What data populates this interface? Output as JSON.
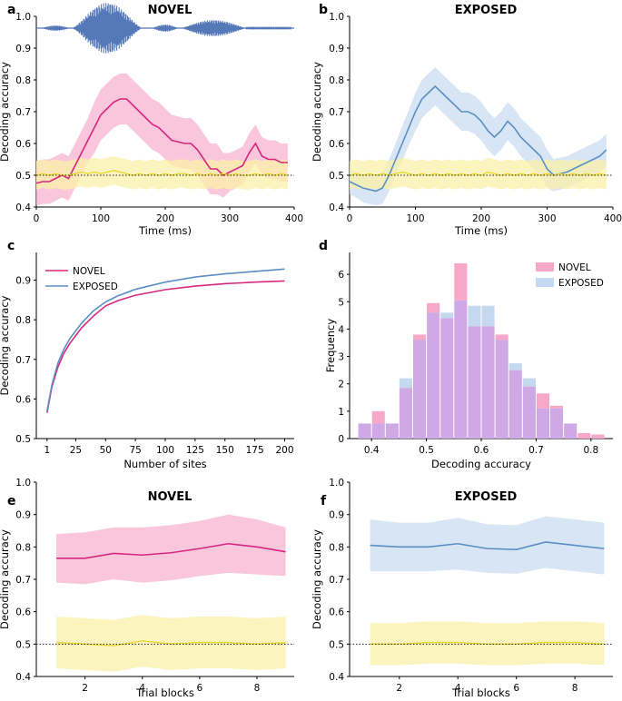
{
  "colors": {
    "novel": "#d6287f",
    "novel_band": "#f7b3d0",
    "exposed": "#5b8fc4",
    "exposed_band": "#c9dcf0",
    "chance": "#e8d62a",
    "chance_band": "#fbf0a8",
    "waveform": "#5578b8",
    "hist_novel": "#f7a8c8",
    "hist_exposed": "#c4d8f0",
    "hist_overlap": "#cfa8e6"
  },
  "chart_data": [
    {
      "id": "a",
      "type": "line",
      "panel_label": "a",
      "title": "NOVEL",
      "xlabel": "Time (ms)",
      "ylabel": "Decoding accuracy",
      "xlim": [
        0,
        400
      ],
      "ylim": [
        0.4,
        1.0
      ],
      "xticks": [
        "0",
        "100",
        "200",
        "300",
        "400"
      ],
      "yticks": [
        "0.4",
        "0.5",
        "0.6",
        "0.7",
        "0.8",
        "0.9",
        "1.0"
      ],
      "x": [
        0,
        10,
        20,
        30,
        40,
        50,
        60,
        70,
        80,
        90,
        100,
        110,
        120,
        130,
        140,
        150,
        160,
        170,
        180,
        190,
        200,
        210,
        220,
        230,
        240,
        250,
        260,
        270,
        280,
        290,
        300,
        310,
        320,
        330,
        340,
        350,
        360,
        370,
        380,
        390
      ],
      "series": [
        {
          "name": "NOVEL",
          "color_key": "novel",
          "values": [
            0.475,
            0.48,
            0.48,
            0.49,
            0.5,
            0.49,
            0.53,
            0.57,
            0.61,
            0.65,
            0.69,
            0.71,
            0.73,
            0.74,
            0.74,
            0.72,
            0.7,
            0.68,
            0.66,
            0.65,
            0.63,
            0.61,
            0.605,
            0.6,
            0.6,
            0.58,
            0.55,
            0.52,
            0.52,
            0.5,
            0.51,
            0.52,
            0.53,
            0.57,
            0.6,
            0.56,
            0.55,
            0.55,
            0.54,
            0.54
          ],
          "band": [
            0.07,
            0.07,
            0.07,
            0.07,
            0.07,
            0.07,
            0.07,
            0.07,
            0.07,
            0.08,
            0.08,
            0.08,
            0.08,
            0.08,
            0.08,
            0.08,
            0.08,
            0.08,
            0.08,
            0.08,
            0.08,
            0.08,
            0.08,
            0.08,
            0.08,
            0.08,
            0.08,
            0.08,
            0.08,
            0.07,
            0.06,
            0.06,
            0.06,
            0.06,
            0.06,
            0.06,
            0.06,
            0.06,
            0.06,
            0.06
          ]
        },
        {
          "name": "Chance",
          "color_key": "chance",
          "values": [
            0.5,
            0.505,
            0.5,
            0.505,
            0.5,
            0.5,
            0.505,
            0.51,
            0.505,
            0.51,
            0.505,
            0.51,
            0.515,
            0.51,
            0.505,
            0.5,
            0.505,
            0.5,
            0.505,
            0.5,
            0.505,
            0.5,
            0.505,
            0.505,
            0.5,
            0.505,
            0.5,
            0.505,
            0.5,
            0.505,
            0.5,
            0.505,
            0.5,
            0.5,
            0.505,
            0.5,
            0.505,
            0.5,
            0.505,
            0.5
          ],
          "band": [
            0.045,
            0.045,
            0.045,
            0.045,
            0.045,
            0.045,
            0.045,
            0.045,
            0.045,
            0.045,
            0.045,
            0.045,
            0.045,
            0.045,
            0.045,
            0.045,
            0.045,
            0.045,
            0.045,
            0.045,
            0.045,
            0.045,
            0.045,
            0.045,
            0.045,
            0.045,
            0.045,
            0.045,
            0.045,
            0.045,
            0.045,
            0.045,
            0.045,
            0.045,
            0.045,
            0.045,
            0.045,
            0.045,
            0.045,
            0.045
          ]
        }
      ],
      "chance_line": 0.5,
      "waveform": true
    },
    {
      "id": "b",
      "type": "line",
      "panel_label": "b",
      "title": "EXPOSED",
      "xlabel": "Time (ms)",
      "ylabel": "Decoding accuracy",
      "xlim": [
        0,
        400
      ],
      "ylim": [
        0.4,
        1.0
      ],
      "xticks": [
        "0",
        "100",
        "200",
        "300",
        "400"
      ],
      "yticks": [
        "0.4",
        "0.5",
        "0.6",
        "0.7",
        "0.8",
        "0.9",
        "1.0"
      ],
      "x": [
        0,
        10,
        20,
        30,
        40,
        50,
        60,
        70,
        80,
        90,
        100,
        110,
        120,
        130,
        140,
        150,
        160,
        170,
        180,
        190,
        200,
        210,
        220,
        230,
        240,
        250,
        260,
        270,
        280,
        290,
        300,
        310,
        320,
        330,
        340,
        350,
        360,
        370,
        380,
        390
      ],
      "series": [
        {
          "name": "EXPOSED",
          "color_key": "exposed",
          "values": [
            0.48,
            0.47,
            0.46,
            0.455,
            0.45,
            0.46,
            0.5,
            0.55,
            0.6,
            0.65,
            0.7,
            0.74,
            0.76,
            0.78,
            0.76,
            0.74,
            0.72,
            0.7,
            0.7,
            0.69,
            0.67,
            0.64,
            0.62,
            0.64,
            0.67,
            0.65,
            0.62,
            0.6,
            0.58,
            0.56,
            0.52,
            0.5,
            0.505,
            0.51,
            0.52,
            0.53,
            0.54,
            0.55,
            0.56,
            0.58
          ],
          "band": [
            0.04,
            0.04,
            0.045,
            0.045,
            0.045,
            0.05,
            0.05,
            0.05,
            0.055,
            0.055,
            0.06,
            0.06,
            0.06,
            0.06,
            0.06,
            0.06,
            0.06,
            0.06,
            0.06,
            0.06,
            0.06,
            0.06,
            0.06,
            0.06,
            0.06,
            0.06,
            0.06,
            0.06,
            0.06,
            0.06,
            0.06,
            0.05,
            0.05,
            0.05,
            0.05,
            0.05,
            0.05,
            0.05,
            0.05,
            0.05
          ]
        },
        {
          "name": "Chance",
          "color_key": "chance",
          "values": [
            0.5,
            0.505,
            0.5,
            0.505,
            0.5,
            0.505,
            0.5,
            0.505,
            0.51,
            0.505,
            0.5,
            0.505,
            0.5,
            0.505,
            0.5,
            0.505,
            0.5,
            0.505,
            0.5,
            0.505,
            0.5,
            0.51,
            0.505,
            0.5,
            0.505,
            0.5,
            0.505,
            0.5,
            0.505,
            0.5,
            0.505,
            0.5,
            0.505,
            0.5,
            0.505,
            0.5,
            0.505,
            0.5,
            0.505,
            0.5
          ],
          "band": [
            0.045,
            0.045,
            0.045,
            0.045,
            0.045,
            0.045,
            0.045,
            0.045,
            0.045,
            0.045,
            0.045,
            0.045,
            0.045,
            0.045,
            0.045,
            0.045,
            0.045,
            0.045,
            0.045,
            0.045,
            0.045,
            0.045,
            0.045,
            0.045,
            0.045,
            0.045,
            0.045,
            0.045,
            0.045,
            0.045,
            0.045,
            0.045,
            0.045,
            0.045,
            0.045,
            0.045,
            0.045,
            0.045,
            0.045,
            0.045
          ]
        }
      ],
      "chance_line": 0.5
    },
    {
      "id": "c",
      "type": "line",
      "panel_label": "c",
      "title": "",
      "xlabel": "Number of sites",
      "ylabel": "Decoding accuracy",
      "xlim": [
        -8,
        208
      ],
      "ylim": [
        0.5,
        0.97
      ],
      "xticks": [
        "1",
        "25",
        "50",
        "75",
        "100",
        "125",
        "150",
        "175",
        "200"
      ],
      "xtick_values": [
        1,
        25,
        50,
        75,
        100,
        125,
        150,
        175,
        200
      ],
      "yticks": [
        "0.5",
        "0.6",
        "0.7",
        "0.8",
        "0.9"
      ],
      "ytick_values": [
        0.5,
        0.6,
        0.7,
        0.8,
        0.9
      ],
      "x": [
        1,
        5,
        10,
        15,
        20,
        25,
        30,
        40,
        50,
        60,
        75,
        100,
        125,
        150,
        175,
        200
      ],
      "series": [
        {
          "name": "NOVEL",
          "color_key": "novel",
          "values": [
            0.565,
            0.63,
            0.68,
            0.715,
            0.74,
            0.76,
            0.78,
            0.81,
            0.835,
            0.848,
            0.862,
            0.876,
            0.885,
            0.891,
            0.895,
            0.898
          ]
        },
        {
          "name": "EXPOSED",
          "color_key": "exposed",
          "values": [
            0.57,
            0.635,
            0.69,
            0.725,
            0.752,
            0.772,
            0.792,
            0.823,
            0.845,
            0.86,
            0.877,
            0.895,
            0.908,
            0.916,
            0.922,
            0.928
          ]
        }
      ],
      "legend": [
        "NOVEL",
        "EXPOSED"
      ],
      "legend_position": "top-left"
    },
    {
      "id": "d",
      "type": "bar",
      "panel_label": "d",
      "title": "",
      "xlabel": "Decoding accuracy",
      "ylabel": "Frequency",
      "xlim": [
        0.36,
        0.84
      ],
      "ylim": [
        0,
        6.8
      ],
      "xticks": [
        "0.4",
        "0.5",
        "0.6",
        "0.7",
        "0.8"
      ],
      "xtick_values": [
        0.4,
        0.5,
        0.6,
        0.7,
        0.8
      ],
      "yticks": [
        "0",
        "1",
        "2",
        "3",
        "4",
        "5",
        "6"
      ],
      "bin_edges": [
        0.375,
        0.4,
        0.425,
        0.45,
        0.475,
        0.5,
        0.525,
        0.55,
        0.575,
        0.6,
        0.625,
        0.65,
        0.675,
        0.7,
        0.725,
        0.75,
        0.775,
        0.8,
        0.825
      ],
      "series": [
        {
          "name": "NOVEL",
          "color_key": "hist_novel",
          "values": [
            0.55,
            1.0,
            0.55,
            1.85,
            3.8,
            4.95,
            4.4,
            6.4,
            4.1,
            4.1,
            3.8,
            2.5,
            1.9,
            1.65,
            1.2,
            0.55,
            0.2,
            0.15
          ]
        },
        {
          "name": "EXPOSED",
          "color_key": "hist_exposed",
          "values": [
            0.55,
            0.55,
            0.55,
            2.2,
            3.6,
            4.6,
            4.6,
            5.05,
            4.85,
            4.85,
            3.6,
            2.75,
            2.2,
            1.1,
            1.1,
            0.55,
            0,
            0
          ]
        }
      ],
      "legend": [
        "NOVEL",
        "EXPOSED"
      ],
      "legend_position": "top-right"
    },
    {
      "id": "e",
      "type": "line",
      "panel_label": "e",
      "title": "NOVEL",
      "xlabel": "Trial blocks",
      "ylabel": "Decoding accuracy",
      "xlim": [
        0.3,
        9.3
      ],
      "ylim": [
        0.4,
        1.0
      ],
      "xticks": [
        "2",
        "4",
        "6",
        "8"
      ],
      "xtick_values": [
        2,
        4,
        6,
        8
      ],
      "yticks": [
        "0.4",
        "0.5",
        "0.6",
        "0.7",
        "0.8",
        "0.9",
        "1.0"
      ],
      "x": [
        1,
        2,
        3,
        4,
        5,
        6,
        7,
        8,
        9
      ],
      "series": [
        {
          "name": "NOVEL",
          "color_key": "novel",
          "values": [
            0.765,
            0.765,
            0.78,
            0.775,
            0.782,
            0.795,
            0.81,
            0.8,
            0.785
          ],
          "band": [
            0.075,
            0.08,
            0.08,
            0.085,
            0.085,
            0.085,
            0.09,
            0.085,
            0.075
          ]
        },
        {
          "name": "Chance",
          "color_key": "chance",
          "values": [
            0.505,
            0.5,
            0.495,
            0.51,
            0.5,
            0.505,
            0.505,
            0.5,
            0.505
          ],
          "band": [
            0.08,
            0.08,
            0.08,
            0.08,
            0.08,
            0.08,
            0.08,
            0.08,
            0.08
          ]
        }
      ],
      "chance_line": 0.5
    },
    {
      "id": "f",
      "type": "line",
      "panel_label": "f",
      "title": "EXPOSED",
      "xlabel": "Trial blocks",
      "ylabel": "Decoding accuracy",
      "xlim": [
        0.3,
        9.3
      ],
      "ylim": [
        0.4,
        1.0
      ],
      "xticks": [
        "2",
        "4",
        "6",
        "8"
      ],
      "xtick_values": [
        2,
        4,
        6,
        8
      ],
      "yticks": [
        "0.4",
        "0.5",
        "0.6",
        "0.7",
        "0.8",
        "0.9",
        "1.0"
      ],
      "x": [
        1,
        2,
        3,
        4,
        5,
        6,
        7,
        8,
        9
      ],
      "series": [
        {
          "name": "EXPOSED",
          "color_key": "exposed",
          "values": [
            0.805,
            0.8,
            0.8,
            0.81,
            0.795,
            0.792,
            0.815,
            0.805,
            0.795
          ],
          "band": [
            0.08,
            0.075,
            0.075,
            0.08,
            0.075,
            0.075,
            0.08,
            0.08,
            0.08
          ]
        },
        {
          "name": "Chance",
          "color_key": "chance",
          "values": [
            0.5,
            0.5,
            0.505,
            0.505,
            0.5,
            0.5,
            0.505,
            0.505,
            0.5
          ],
          "band": [
            0.065,
            0.065,
            0.065,
            0.065,
            0.065,
            0.065,
            0.065,
            0.065,
            0.065
          ]
        }
      ],
      "chance_line": 0.5
    }
  ]
}
